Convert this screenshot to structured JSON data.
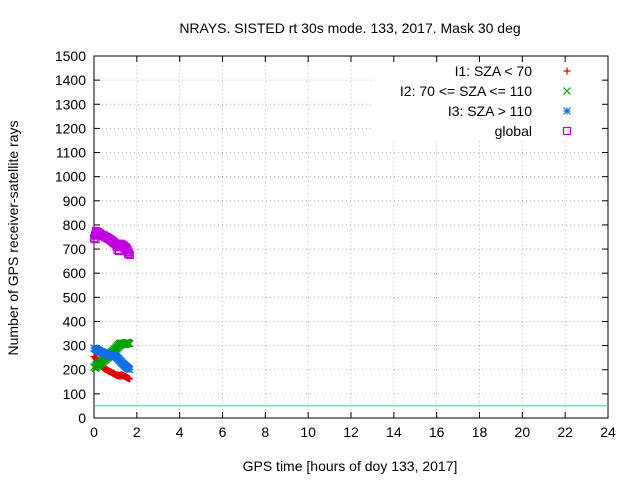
{
  "chart_data": {
    "type": "scatter",
    "title": "NRAYS. SISTED rt 30s mode. 133, 2017. Mask 30 deg",
    "xlabel": "GPS time [hours of doy 133, 2017]",
    "ylabel": "Number of GPS receiver-satellite rays",
    "xlim": [
      0,
      24
    ],
    "ylim": [
      0,
      1500
    ],
    "xticks": [
      0,
      2,
      4,
      6,
      8,
      10,
      12,
      14,
      16,
      18,
      20,
      22,
      24
    ],
    "yticks": [
      0,
      100,
      200,
      300,
      400,
      500,
      600,
      700,
      800,
      900,
      1000,
      1100,
      1200,
      1300,
      1400,
      1500
    ],
    "grid": true,
    "legend_position": "top-right",
    "reference_line": {
      "y": 50,
      "color": "#40c0c0"
    },
    "series": [
      {
        "name": "I1: SZA < 70",
        "marker": "plus",
        "color": "#e00000",
        "x": [
          0.0,
          0.05,
          0.1,
          0.15,
          0.2,
          0.25,
          0.3,
          0.35,
          0.4,
          0.45,
          0.5,
          0.55,
          0.6,
          0.65,
          0.7,
          0.75,
          0.8,
          0.85,
          0.9,
          0.95,
          1.0,
          1.05,
          1.1,
          1.15,
          1.2,
          1.25,
          1.3,
          1.35,
          1.4,
          1.45,
          1.5,
          1.55,
          1.6
        ],
        "y": [
          255,
          250,
          245,
          238,
          232,
          226,
          220,
          214,
          210,
          206,
          204,
          202,
          200,
          197,
          195,
          193,
          190,
          188,
          185,
          183,
          180,
          179,
          178,
          178,
          177,
          178,
          179,
          177,
          175,
          172,
          170,
          168,
          166
        ]
      },
      {
        "name": "I2: 70 <= SZA <= 110",
        "marker": "cross",
        "color": "#00a000",
        "x": [
          0.0,
          0.05,
          0.1,
          0.15,
          0.2,
          0.25,
          0.3,
          0.35,
          0.4,
          0.45,
          0.5,
          0.55,
          0.6,
          0.65,
          0.7,
          0.75,
          0.8,
          0.85,
          0.9,
          0.95,
          1.0,
          1.05,
          1.1,
          1.15,
          1.2,
          1.25,
          1.3,
          1.35,
          1.4,
          1.45,
          1.5,
          1.55,
          1.6
        ],
        "y": [
          210,
          215,
          220,
          222,
          225,
          228,
          232,
          236,
          240,
          244,
          248,
          252,
          256,
          260,
          264,
          268,
          272,
          276,
          280,
          285,
          290,
          295,
          300,
          305,
          308,
          310,
          310,
          309,
          310,
          311,
          312,
          313,
          312
        ]
      },
      {
        "name": "I3: SZA > 110",
        "marker": "star",
        "color": "#1070e0",
        "x": [
          0.0,
          0.05,
          0.1,
          0.15,
          0.2,
          0.25,
          0.3,
          0.35,
          0.4,
          0.45,
          0.5,
          0.55,
          0.6,
          0.65,
          0.7,
          0.75,
          0.8,
          0.85,
          0.9,
          0.95,
          1.0,
          1.05,
          1.1,
          1.15,
          1.2,
          1.25,
          1.3,
          1.35,
          1.4,
          1.45,
          1.5,
          1.55,
          1.6
        ],
        "y": [
          290,
          288,
          285,
          282,
          280,
          278,
          276,
          274,
          272,
          270,
          268,
          266,
          265,
          264,
          262,
          262,
          261,
          262,
          260,
          258,
          256,
          252,
          248,
          242,
          238,
          232,
          228,
          224,
          220,
          216,
          212,
          208,
          205
        ]
      },
      {
        "name": "global",
        "marker": "square",
        "color": "#c000e0",
        "x": [
          0.0,
          0.05,
          0.1,
          0.15,
          0.2,
          0.25,
          0.3,
          0.35,
          0.4,
          0.45,
          0.5,
          0.55,
          0.6,
          0.65,
          0.7,
          0.75,
          0.8,
          0.85,
          0.9,
          0.95,
          1.0,
          1.05,
          1.1,
          1.15,
          1.2,
          1.25,
          1.3,
          1.35,
          1.4,
          1.45,
          1.5,
          1.55,
          1.6
        ],
        "y": [
          745,
          760,
          775,
          770,
          768,
          764,
          762,
          760,
          758,
          756,
          752,
          750,
          748,
          746,
          742,
          740,
          736,
          732,
          728,
          724,
          722,
          712,
          696,
          718,
          720,
          722,
          718,
          715,
          712,
          708,
          700,
          690,
          680
        ]
      }
    ]
  }
}
